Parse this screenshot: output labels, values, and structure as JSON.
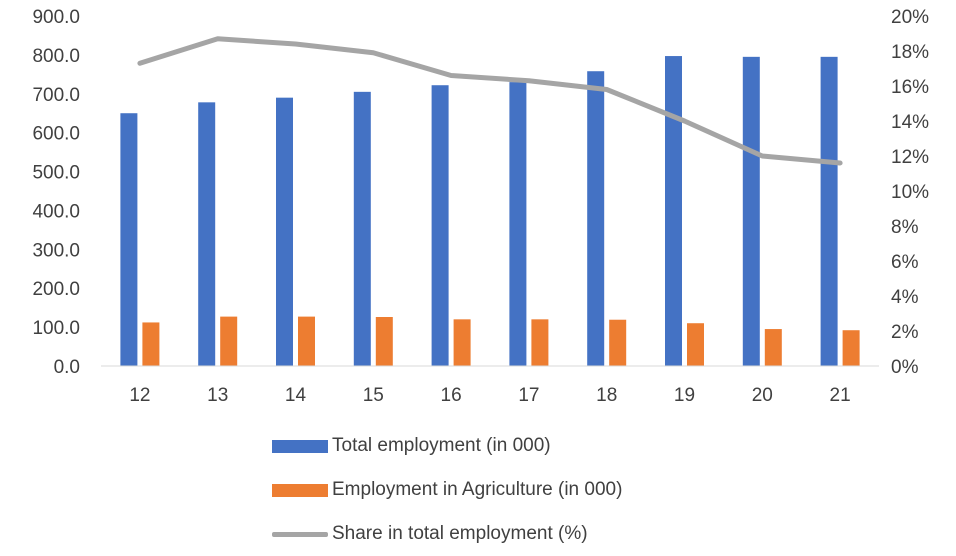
{
  "chart_data": {
    "type": "bar",
    "categories": [
      "12",
      "13",
      "14",
      "15",
      "16",
      "17",
      "18",
      "19",
      "20",
      "21"
    ],
    "series": [
      {
        "name": "Total employment (in 000)",
        "kind": "bar",
        "axis": "left",
        "color": "#4472C4",
        "values": [
          650,
          678,
          690,
          705,
          722,
          730,
          758,
          797,
          795,
          795
        ]
      },
      {
        "name": "Employment in Agriculture (in 000)",
        "kind": "bar",
        "axis": "left",
        "color": "#ED7D31",
        "values": [
          112,
          127,
          127,
          126,
          120,
          120,
          119,
          110,
          95,
          92
        ]
      },
      {
        "name": "Share in total employment (%)",
        "kind": "line",
        "axis": "right",
        "color": "#A5A5A5",
        "values": [
          17.3,
          18.7,
          18.4,
          17.9,
          16.6,
          16.3,
          15.8,
          14.0,
          12.0,
          11.6
        ]
      }
    ],
    "left_axis": {
      "ylim": [
        0,
        900
      ],
      "ticks": [
        "900.0",
        "800.0",
        "700.0",
        "600.0",
        "500.0",
        "400.0",
        "300.0",
        "200.0",
        "100.0",
        "0.0"
      ]
    },
    "right_axis": {
      "ylim": [
        0,
        20
      ],
      "ticks": [
        "20%",
        "18%",
        "16%",
        "14%",
        "12%",
        "10%",
        "8%",
        "6%",
        "4%",
        "2%",
        "0%"
      ]
    },
    "title": "",
    "xlabel": "",
    "ylabel": "",
    "grid": false,
    "legend_position": "bottom"
  }
}
